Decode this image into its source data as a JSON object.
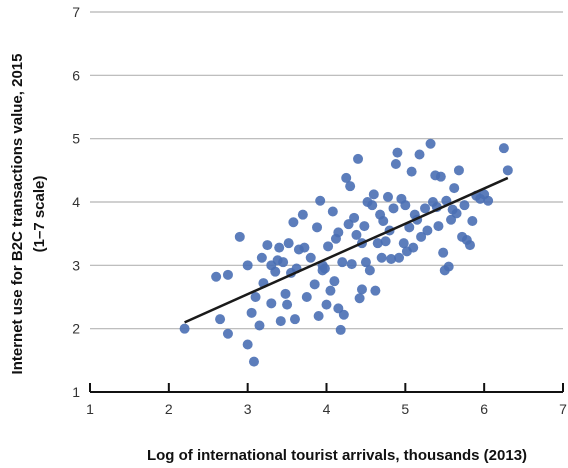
{
  "chart_data": {
    "type": "scatter",
    "title": "",
    "xlabel": "Log of international tourist arrivals, thousands (2013)",
    "ylabel_line1": "Internet use for B2C transactions value, 2015",
    "ylabel_line2": "(1–7 scale)",
    "xlim": [
      1,
      7
    ],
    "ylim": [
      1,
      7
    ],
    "x_ticks": [
      1,
      2,
      3,
      4,
      5,
      6,
      7
    ],
    "y_ticks": [
      1,
      2,
      3,
      4,
      5,
      6,
      7
    ],
    "grid": "horizontal",
    "colors": {
      "point": "#4a6fb4",
      "trend": "#1a1a1a",
      "grid": "#b5b5b5",
      "axis": "#111111"
    },
    "trendline": {
      "x": [
        2.2,
        6.3
      ],
      "y": [
        2.1,
        4.38
      ]
    },
    "points": [
      {
        "x": 2.2,
        "y": 2.0
      },
      {
        "x": 2.6,
        "y": 2.82
      },
      {
        "x": 2.65,
        "y": 2.15
      },
      {
        "x": 2.75,
        "y": 1.92
      },
      {
        "x": 2.75,
        "y": 2.85
      },
      {
        "x": 2.9,
        "y": 3.45
      },
      {
        "x": 3.0,
        "y": 3.0
      },
      {
        "x": 3.0,
        "y": 1.75
      },
      {
        "x": 3.05,
        "y": 2.25
      },
      {
        "x": 3.08,
        "y": 1.48
      },
      {
        "x": 3.1,
        "y": 2.5
      },
      {
        "x": 3.15,
        "y": 2.05
      },
      {
        "x": 3.18,
        "y": 3.12
      },
      {
        "x": 3.2,
        "y": 2.72
      },
      {
        "x": 3.25,
        "y": 3.32
      },
      {
        "x": 3.3,
        "y": 2.4
      },
      {
        "x": 3.35,
        "y": 2.9
      },
      {
        "x": 3.38,
        "y": 3.08
      },
      {
        "x": 3.4,
        "y": 3.28
      },
      {
        "x": 3.42,
        "y": 2.12
      },
      {
        "x": 3.45,
        "y": 3.05
      },
      {
        "x": 3.48,
        "y": 2.55
      },
      {
        "x": 3.5,
        "y": 2.38
      },
      {
        "x": 3.52,
        "y": 3.35
      },
      {
        "x": 3.55,
        "y": 2.88
      },
      {
        "x": 3.58,
        "y": 3.68
      },
      {
        "x": 3.6,
        "y": 2.15
      },
      {
        "x": 3.62,
        "y": 2.95
      },
      {
        "x": 3.65,
        "y": 3.25
      },
      {
        "x": 3.7,
        "y": 3.8
      },
      {
        "x": 3.75,
        "y": 2.5
      },
      {
        "x": 3.8,
        "y": 3.12
      },
      {
        "x": 3.85,
        "y": 2.7
      },
      {
        "x": 3.88,
        "y": 3.6
      },
      {
        "x": 3.9,
        "y": 2.2
      },
      {
        "x": 3.92,
        "y": 4.02
      },
      {
        "x": 3.95,
        "y": 3.0
      },
      {
        "x": 3.98,
        "y": 2.95
      },
      {
        "x": 4.0,
        "y": 2.38
      },
      {
        "x": 4.02,
        "y": 3.3
      },
      {
        "x": 4.05,
        "y": 2.6
      },
      {
        "x": 4.08,
        "y": 3.85
      },
      {
        "x": 4.1,
        "y": 2.75
      },
      {
        "x": 4.12,
        "y": 3.42
      },
      {
        "x": 4.15,
        "y": 2.32
      },
      {
        "x": 4.18,
        "y": 1.98
      },
      {
        "x": 4.2,
        "y": 3.05
      },
      {
        "x": 4.22,
        "y": 2.22
      },
      {
        "x": 4.25,
        "y": 4.38
      },
      {
        "x": 4.28,
        "y": 3.65
      },
      {
        "x": 4.3,
        "y": 4.25
      },
      {
        "x": 4.32,
        "y": 3.02
      },
      {
        "x": 4.35,
        "y": 3.75
      },
      {
        "x": 4.38,
        "y": 3.48
      },
      {
        "x": 4.4,
        "y": 4.68
      },
      {
        "x": 4.42,
        "y": 2.48
      },
      {
        "x": 4.45,
        "y": 2.62
      },
      {
        "x": 4.48,
        "y": 3.62
      },
      {
        "x": 4.5,
        "y": 3.05
      },
      {
        "x": 4.52,
        "y": 4.0
      },
      {
        "x": 4.55,
        "y": 2.92
      },
      {
        "x": 4.58,
        "y": 3.95
      },
      {
        "x": 4.6,
        "y": 4.12
      },
      {
        "x": 4.62,
        "y": 2.6
      },
      {
        "x": 4.65,
        "y": 3.35
      },
      {
        "x": 4.68,
        "y": 3.8
      },
      {
        "x": 4.7,
        "y": 3.12
      },
      {
        "x": 4.72,
        "y": 3.7
      },
      {
        "x": 4.75,
        "y": 3.38
      },
      {
        "x": 4.78,
        "y": 4.08
      },
      {
        "x": 4.8,
        "y": 3.55
      },
      {
        "x": 4.82,
        "y": 3.1
      },
      {
        "x": 4.85,
        "y": 3.9
      },
      {
        "x": 4.88,
        "y": 4.6
      },
      {
        "x": 4.9,
        "y": 4.78
      },
      {
        "x": 4.92,
        "y": 3.12
      },
      {
        "x": 4.95,
        "y": 4.05
      },
      {
        "x": 4.98,
        "y": 3.35
      },
      {
        "x": 5.0,
        "y": 3.95
      },
      {
        "x": 5.02,
        "y": 3.22
      },
      {
        "x": 5.05,
        "y": 3.6
      },
      {
        "x": 5.08,
        "y": 4.48
      },
      {
        "x": 5.1,
        "y": 3.28
      },
      {
        "x": 5.12,
        "y": 3.8
      },
      {
        "x": 5.15,
        "y": 3.72
      },
      {
        "x": 5.18,
        "y": 4.75
      },
      {
        "x": 5.2,
        "y": 3.45
      },
      {
        "x": 5.25,
        "y": 3.9
      },
      {
        "x": 5.28,
        "y": 3.55
      },
      {
        "x": 5.32,
        "y": 4.92
      },
      {
        "x": 5.35,
        "y": 4.0
      },
      {
        "x": 5.4,
        "y": 3.92
      },
      {
        "x": 5.42,
        "y": 3.62
      },
      {
        "x": 5.45,
        "y": 4.4
      },
      {
        "x": 5.48,
        "y": 3.2
      },
      {
        "x": 5.5,
        "y": 2.92
      },
      {
        "x": 5.52,
        "y": 4.02
      },
      {
        "x": 5.55,
        "y": 2.98
      },
      {
        "x": 5.58,
        "y": 3.72
      },
      {
        "x": 5.6,
        "y": 3.88
      },
      {
        "x": 5.62,
        "y": 4.22
      },
      {
        "x": 5.65,
        "y": 3.82
      },
      {
        "x": 5.68,
        "y": 4.5
      },
      {
        "x": 5.72,
        "y": 3.45
      },
      {
        "x": 5.75,
        "y": 3.95
      },
      {
        "x": 5.78,
        "y": 3.4
      },
      {
        "x": 5.82,
        "y": 3.32
      },
      {
        "x": 5.85,
        "y": 3.7
      },
      {
        "x": 5.9,
        "y": 4.1
      },
      {
        "x": 5.95,
        "y": 4.05
      },
      {
        "x": 6.0,
        "y": 4.12
      },
      {
        "x": 6.05,
        "y": 4.02
      },
      {
        "x": 6.25,
        "y": 4.85
      },
      {
        "x": 6.3,
        "y": 4.5
      },
      {
        "x": 4.15,
        "y": 3.52
      },
      {
        "x": 3.72,
        "y": 3.28
      },
      {
        "x": 4.45,
        "y": 3.35
      },
      {
        "x": 5.38,
        "y": 4.42
      },
      {
        "x": 3.3,
        "y": 3.0
      },
      {
        "x": 3.95,
        "y": 2.92
      }
    ]
  }
}
